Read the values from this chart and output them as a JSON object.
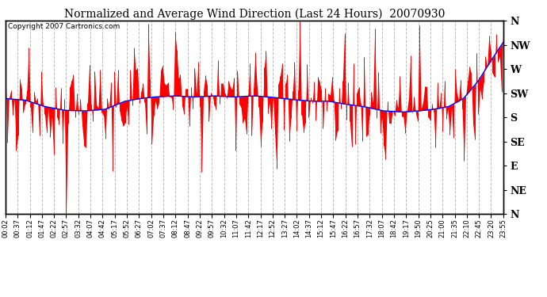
{
  "title": "Normalized and Average Wind Direction (Last 24 Hours)  20070930",
  "copyright": "Copyright 2007 Cartronics.com",
  "background_color": "#ffffff",
  "plot_bg_color": "#ffffff",
  "grid_color": "#bbbbbb",
  "red_color": "#ff0000",
  "blue_color": "#0000ff",
  "ytick_labels": [
    "N",
    "NW",
    "W",
    "SW",
    "S",
    "SE",
    "E",
    "NE",
    "N"
  ],
  "ytick_values": [
    360,
    315,
    270,
    225,
    180,
    135,
    90,
    45,
    0
  ],
  "ylim": [
    0,
    360
  ],
  "xtick_labels": [
    "00:02",
    "00:37",
    "01:12",
    "01:47",
    "02:22",
    "02:57",
    "03:32",
    "04:07",
    "04:42",
    "05:17",
    "05:52",
    "06:27",
    "07:02",
    "07:37",
    "08:12",
    "08:47",
    "09:22",
    "09:57",
    "10:32",
    "11:07",
    "11:42",
    "12:17",
    "12:52",
    "13:27",
    "14:02",
    "14:37",
    "15:12",
    "15:47",
    "16:22",
    "16:57",
    "17:32",
    "18:07",
    "18:42",
    "19:17",
    "19:50",
    "20:25",
    "21:00",
    "21:35",
    "22:10",
    "22:45",
    "23:20",
    "23:55"
  ],
  "avg_keyframes_x": [
    0,
    0.04,
    0.08,
    0.12,
    0.16,
    0.2,
    0.24,
    0.27,
    0.3,
    0.34,
    0.38,
    0.42,
    0.46,
    0.5,
    0.53,
    0.56,
    0.59,
    0.62,
    0.65,
    0.68,
    0.72,
    0.76,
    0.8,
    0.83,
    0.86,
    0.89,
    0.92,
    0.95,
    0.97,
    1.0
  ],
  "avg_keyframes_y": [
    215,
    212,
    200,
    193,
    192,
    195,
    210,
    215,
    218,
    220,
    218,
    220,
    218,
    220,
    218,
    215,
    212,
    210,
    210,
    205,
    200,
    192,
    190,
    192,
    195,
    200,
    215,
    248,
    278,
    320
  ]
}
